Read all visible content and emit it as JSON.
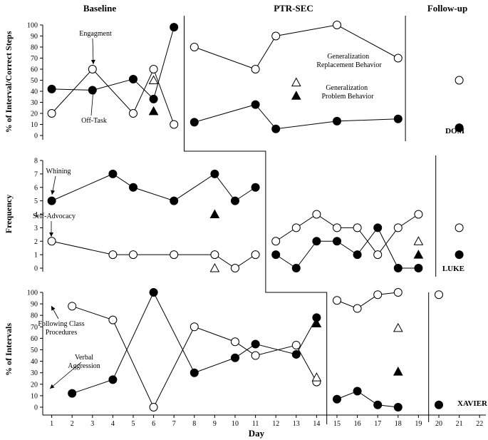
{
  "chart_data": {
    "type": "line",
    "phases": [
      "Baseline",
      "PTR-SEC",
      "Follow-up"
    ],
    "xlabel": "Day",
    "x_ticks": [
      1,
      2,
      3,
      4,
      5,
      6,
      7,
      8,
      9,
      10,
      11,
      12,
      13,
      14,
      15,
      16,
      17,
      18,
      19,
      20,
      21,
      22
    ],
    "legend": {
      "gen_replacement": "Generalization Replacement Behavior",
      "gen_problem": "Generalization Problem Behavior"
    },
    "panels": [
      {
        "participant": "DOM",
        "ylabel": "% of Interval/Correct Steps",
        "ylim": [
          0,
          100
        ],
        "y_ticks": [
          0,
          10,
          20,
          30,
          40,
          50,
          60,
          70,
          80,
          90,
          100
        ],
        "phase_change_after": [
          7,
          18
        ],
        "series": [
          {
            "name": "Engagment",
            "marker": "open",
            "segments": [
              [
                [
                  1,
                  20
                ],
                [
                  3,
                  60
                ],
                [
                  5,
                  20
                ],
                [
                  6,
                  60
                ],
                [
                  7,
                  10
                ]
              ],
              [
                [
                  8,
                  80
                ],
                [
                  11,
                  60
                ],
                [
                  12,
                  90
                ],
                [
                  15,
                  100
                ],
                [
                  18,
                  70
                ]
              ],
              [
                [
                  21,
                  50
                ]
              ]
            ]
          },
          {
            "name": "Off-Task",
            "marker": "filled",
            "segments": [
              [
                [
                  1,
                  42
                ],
                [
                  3,
                  41
                ],
                [
                  5,
                  51
                ],
                [
                  6,
                  33
                ],
                [
                  7,
                  98
                ]
              ],
              [
                [
                  8,
                  12
                ],
                [
                  11,
                  28
                ],
                [
                  12,
                  6
                ],
                [
                  15,
                  13
                ],
                [
                  18,
                  15
                ]
              ],
              [
                [
                  21,
                  7
                ]
              ]
            ]
          }
        ],
        "generalization": {
          "replacement": [
            [
              6,
              50
            ],
            [
              13,
              48
            ]
          ],
          "problem": [
            [
              6,
              22
            ],
            [
              13,
              36
            ]
          ]
        },
        "annotations": [
          {
            "text": "Engagment",
            "x": 3,
            "y": 60
          },
          {
            "text": "Off-Task",
            "x": 3,
            "y": 41
          }
        ]
      },
      {
        "participant": "LUKE",
        "ylabel": "Frequency",
        "ylim": [
          0,
          8
        ],
        "y_ticks": [
          0,
          1,
          2,
          3,
          4,
          5,
          6,
          7,
          8
        ],
        "phase_change_after": [
          11,
          19
        ],
        "series": [
          {
            "name": "Whining",
            "marker": "filled",
            "segments": [
              [
                [
                  1,
                  5
                ],
                [
                  4,
                  7
                ],
                [
                  5,
                  6
                ],
                [
                  7,
                  5
                ],
                [
                  9,
                  7
                ],
                [
                  10,
                  5
                ],
                [
                  11,
                  6
                ]
              ],
              [
                [
                  12,
                  1
                ],
                [
                  13,
                  0
                ],
                [
                  14,
                  2
                ],
                [
                  15,
                  2
                ],
                [
                  16,
                  1
                ],
                [
                  17,
                  3
                ],
                [
                  18,
                  0
                ],
                [
                  19,
                  0
                ]
              ],
              [
                [
                  21,
                  1
                ]
              ]
            ]
          },
          {
            "name": "Self-Advocacy",
            "marker": "open",
            "segments": [
              [
                [
                  1,
                  2
                ],
                [
                  4,
                  1
                ],
                [
                  5,
                  1
                ],
                [
                  7,
                  1
                ],
                [
                  9,
                  1
                ],
                [
                  10,
                  0
                ],
                [
                  11,
                  1
                ]
              ],
              [
                [
                  12,
                  2
                ],
                [
                  13,
                  3
                ],
                [
                  14,
                  4
                ],
                [
                  15,
                  3
                ],
                [
                  16,
                  3
                ],
                [
                  17,
                  1
                ],
                [
                  18,
                  3
                ],
                [
                  19,
                  4
                ]
              ],
              [
                [
                  21,
                  3
                ]
              ]
            ]
          }
        ],
        "generalization": {
          "replacement": [
            [
              9,
              0
            ],
            [
              19,
              2
            ]
          ],
          "problem": [
            [
              9,
              4
            ],
            [
              19,
              1
            ]
          ]
        },
        "annotations": [
          {
            "text": "Whining",
            "x": 1,
            "y": 5
          },
          {
            "text": "Self-Advocacy",
            "x": 1,
            "y": 2
          }
        ]
      },
      {
        "participant": "XAVIER",
        "ylabel": "% of Intervals",
        "ylim": [
          0,
          100
        ],
        "y_ticks": [
          0,
          10,
          20,
          30,
          40,
          50,
          60,
          70,
          80,
          90,
          100
        ],
        "phase_change_after": [
          14,
          19
        ],
        "series": [
          {
            "name": "Following Class Procedures",
            "marker": "open",
            "segments": [
              [
                [
                  2,
                  88
                ],
                [
                  4,
                  76
                ],
                [
                  6,
                  0
                ],
                [
                  8,
                  70
                ],
                [
                  10,
                  57
                ],
                [
                  11,
                  45
                ],
                [
                  13,
                  54
                ],
                [
                  14,
                  22
                ]
              ],
              [
                [
                  15,
                  93
                ],
                [
                  16,
                  86
                ],
                [
                  17,
                  98
                ],
                [
                  18,
                  100
                ]
              ],
              [
                [
                  20,
                  98
                ]
              ]
            ]
          },
          {
            "name": "Verbal Aggression",
            "marker": "filled",
            "segments": [
              [
                [
                  2,
                  12
                ],
                [
                  4,
                  24
                ],
                [
                  6,
                  100
                ],
                [
                  8,
                  30
                ],
                [
                  10,
                  43
                ],
                [
                  11,
                  55
                ],
                [
                  13,
                  46
                ],
                [
                  14,
                  78
                ]
              ],
              [
                [
                  15,
                  7
                ],
                [
                  16,
                  14
                ],
                [
                  17,
                  2
                ],
                [
                  18,
                  0
                ]
              ],
              [
                [
                  20,
                  2
                ]
              ]
            ]
          }
        ],
        "generalization": {
          "replacement": [
            [
              14,
              26
            ],
            [
              18,
              69
            ]
          ],
          "problem": [
            [
              14,
              73
            ],
            [
              18,
              31
            ]
          ]
        },
        "annotations": [
          {
            "text": "Following Class Procedures",
            "x": 2,
            "y": 88
          },
          {
            "text": "Verbal Aggression",
            "x": 2,
            "y": 12
          }
        ]
      }
    ]
  }
}
